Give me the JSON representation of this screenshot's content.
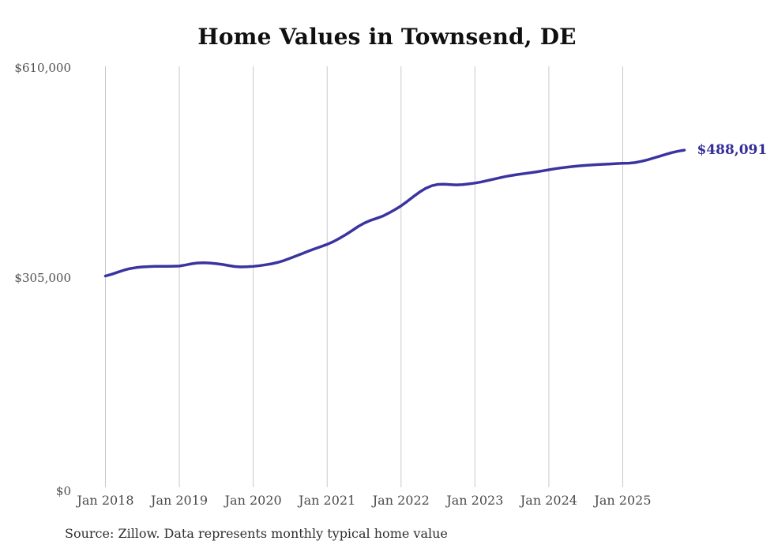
{
  "page": {
    "title": "Home Values in Townsend, DE"
  },
  "chart_data": {
    "type": "line",
    "title": "Home Values in Townsend, DE",
    "legend": "none",
    "grid": "vertical",
    "ylim": [
      0,
      610000
    ],
    "y_ticks": [
      {
        "label": "$610,000",
        "value": 610000
      },
      {
        "label": "$305,000",
        "value": 305000
      },
      {
        "label": "$0",
        "value": 0
      }
    ],
    "x_tick_labels": [
      "Jan 2018",
      "Jan 2019",
      "Jan 2020",
      "Jan 2021",
      "Jan 2022",
      "Jan 2023",
      "Jan 2024",
      "Jan 2025"
    ],
    "series": [
      {
        "name": "Monthly typical home value",
        "start_month": "2018-01",
        "end_month": "2025-11",
        "values": [
          305000,
          307500,
          310500,
          313500,
          315800,
          317300,
          318200,
          318700,
          319000,
          319000,
          319000,
          319200,
          319500,
          321000,
          322800,
          324000,
          324200,
          323800,
          323000,
          321800,
          320200,
          318800,
          318200,
          318500,
          319000,
          320000,
          321300,
          322800,
          324800,
          327500,
          330800,
          334300,
          337800,
          341300,
          344600,
          347800,
          351000,
          355000,
          359800,
          365000,
          370800,
          376800,
          381800,
          385800,
          388800,
          392000,
          396500,
          401500,
          407000,
          413500,
          420500,
          427000,
          432500,
          436300,
          438300,
          438500,
          438000,
          437500,
          438000,
          439000,
          440200,
          441800,
          443800,
          445800,
          447800,
          449800,
          451300,
          452800,
          454000,
          455200,
          456500,
          458000,
          459500,
          461000,
          462300,
          463400,
          464400,
          465300,
          466000,
          466600,
          467100,
          467500,
          468000,
          468500,
          469000,
          469200,
          470000,
          471800,
          474000,
          476600,
          479300,
          482000,
          484600,
          486600,
          488091
        ]
      }
    ],
    "last_value": 488091,
    "end_label": "$488,091",
    "colors": {
      "line": "#3a34a0",
      "end_label": "#332d98",
      "grid": "#c9c9c9",
      "axis_text": "#4a4a4a",
      "title_text": "#101010"
    }
  },
  "footer": {
    "source": "Source: Zillow. Data represents monthly typical home value"
  }
}
